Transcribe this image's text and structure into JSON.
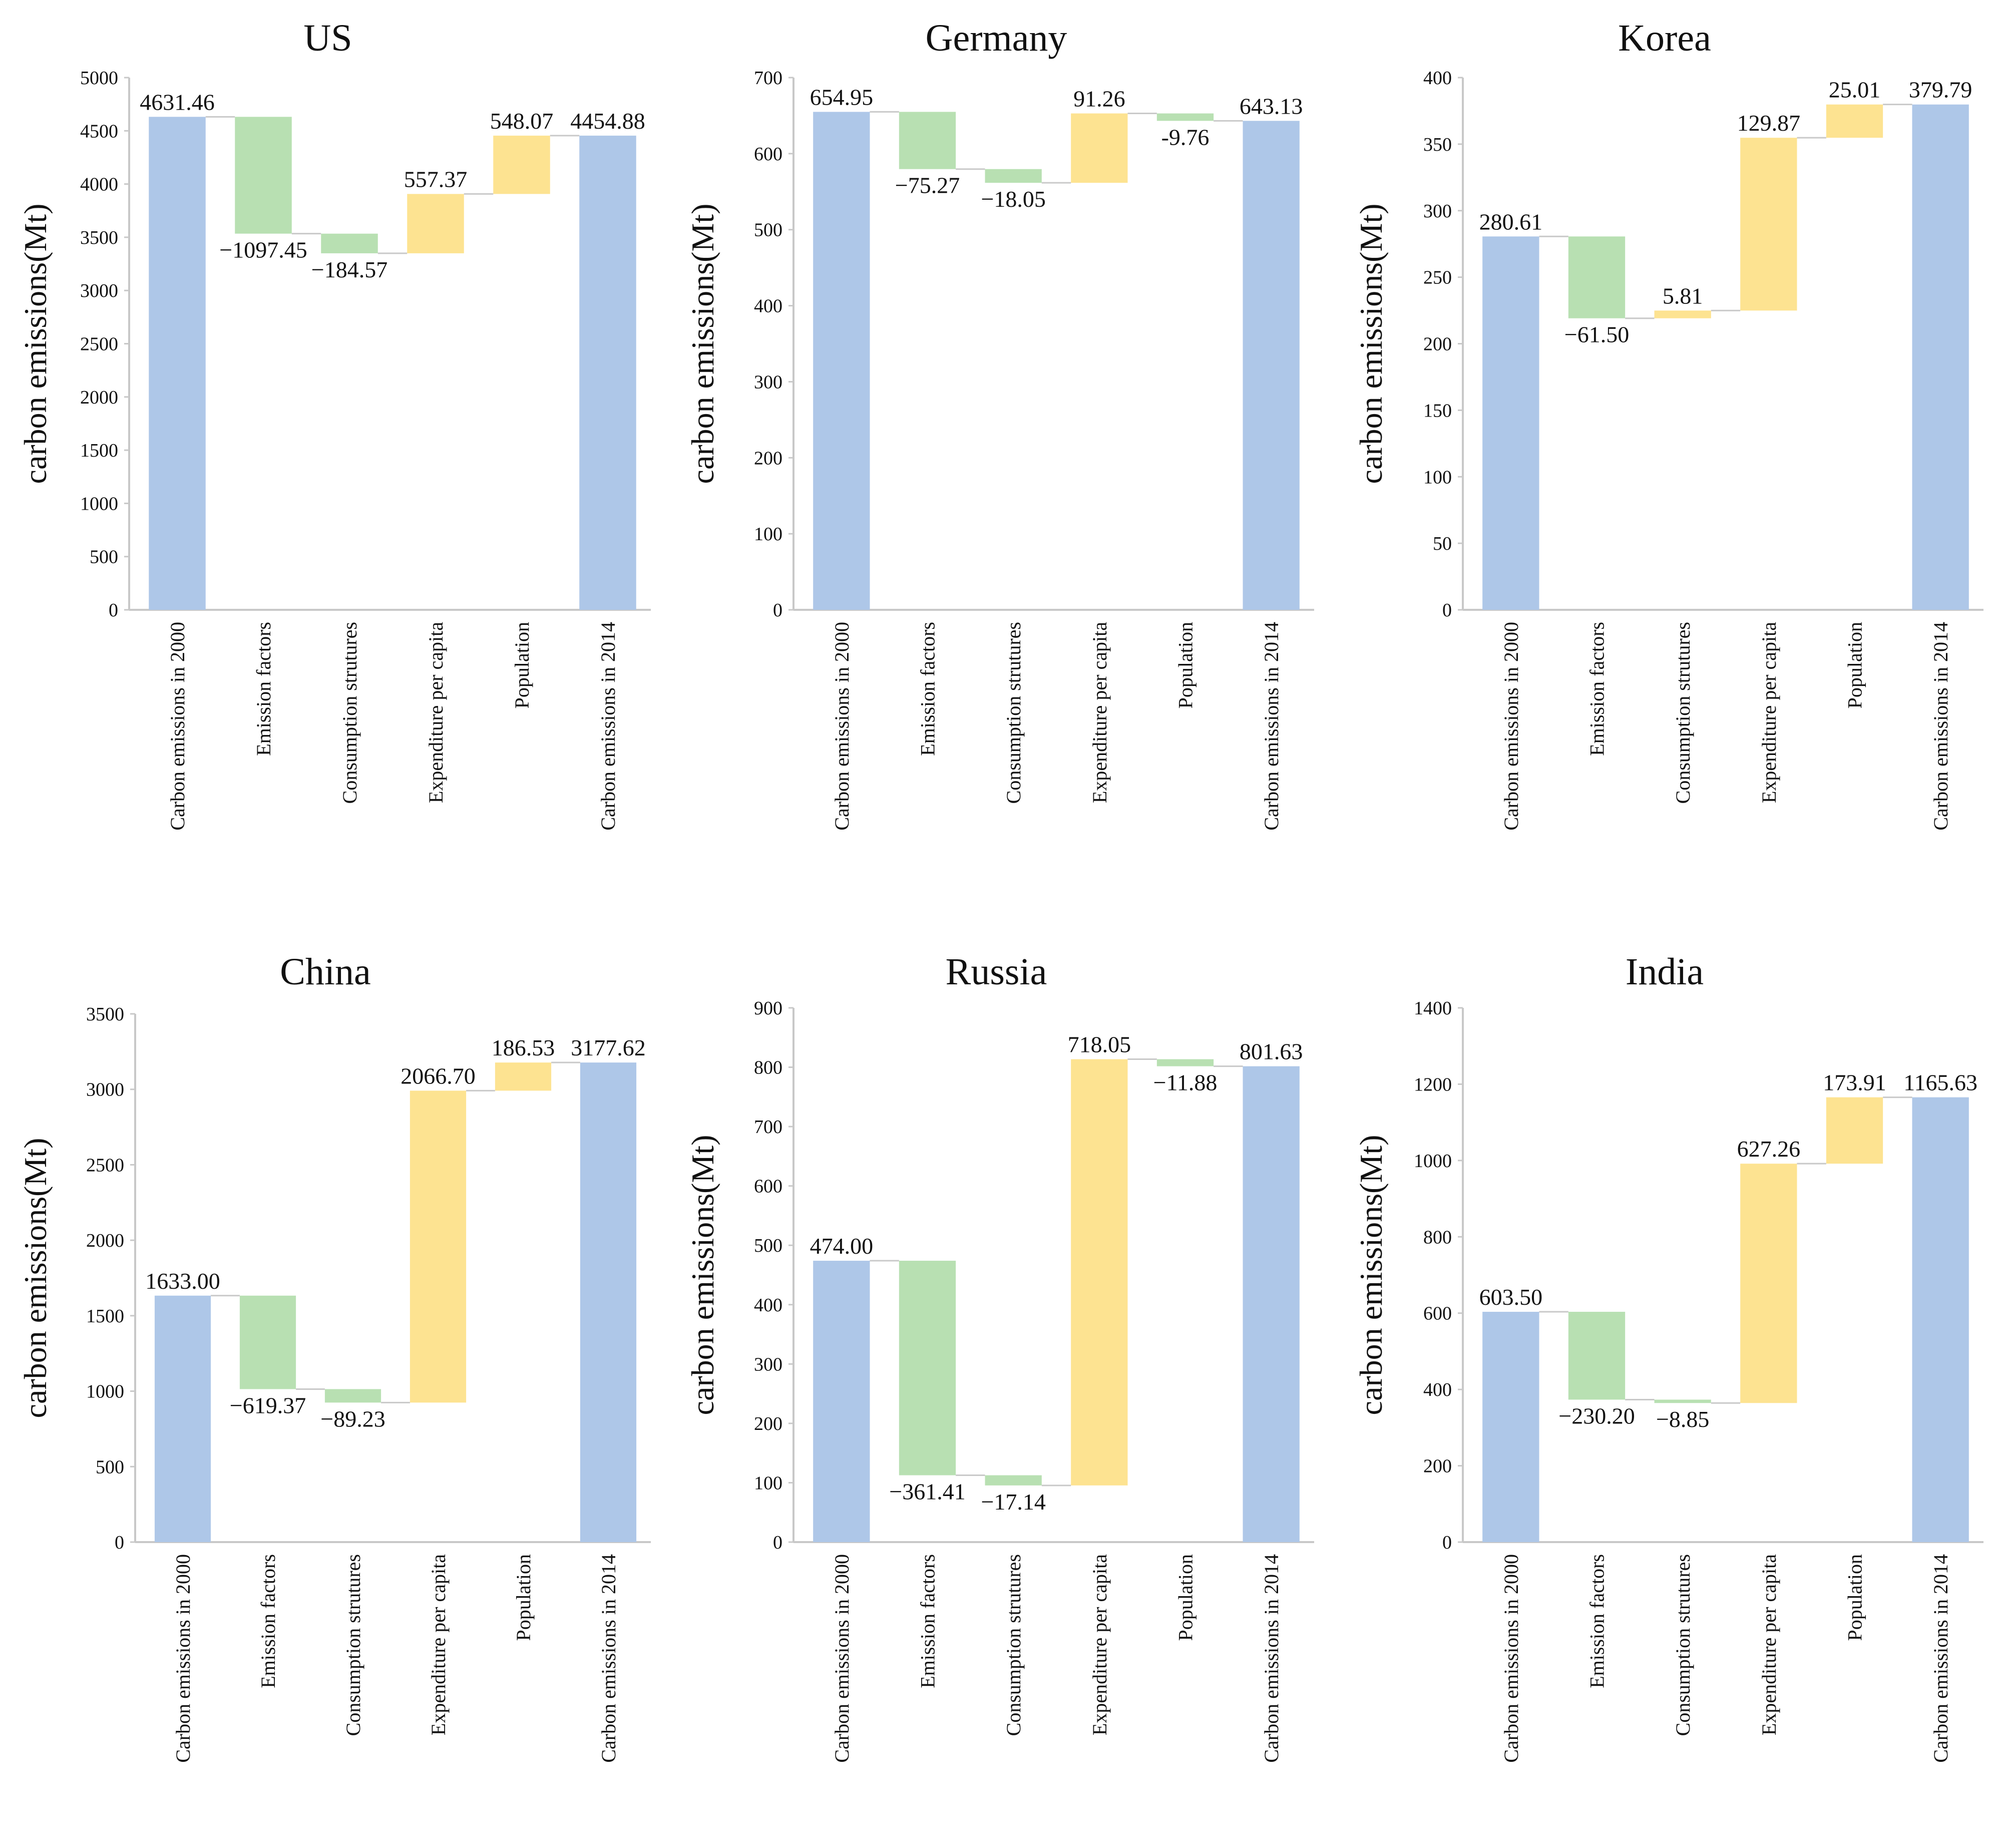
{
  "colors": {
    "total": "#aec7e8",
    "decrease": "#b8e0b2",
    "increase": "#fde391"
  },
  "chart_data": [
    {
      "type": "waterfall",
      "title": "US",
      "ylabel": "carbon emissions(Mt)",
      "ylim": [
        0,
        5000
      ],
      "yticks": [
        0,
        500,
        1000,
        1500,
        2000,
        2500,
        3000,
        3500,
        4000,
        4500,
        5000
      ],
      "categories": [
        "Carbon emissions in 2000",
        "Emission factors",
        "Consumption strutures",
        "Expenditure per capita",
        "Population",
        "Carbon emissions in 2014"
      ],
      "values": [
        4631.46,
        -1097.45,
        -184.57,
        557.37,
        548.07,
        4454.88
      ],
      "labels": [
        "4631.46",
        "−1097.45",
        "−184.57",
        "557.37",
        "548.07",
        "4454.88"
      ]
    },
    {
      "type": "waterfall",
      "title": "Germany",
      "ylabel": "carbon emissions(Mt)",
      "ylim": [
        0,
        700
      ],
      "yticks": [
        0,
        100,
        200,
        300,
        400,
        500,
        600,
        700
      ],
      "categories": [
        "Carbon emissions in 2000",
        "Emission factors",
        "Consumption strutures",
        "Expenditure per capita",
        "Population",
        "Carbon emissions in 2014"
      ],
      "values": [
        654.95,
        -75.27,
        -18.05,
        91.26,
        -9.76,
        643.13
      ],
      "labels": [
        "654.95",
        "−75.27",
        "−18.05",
        "91.26",
        "-9.76",
        "643.13"
      ]
    },
    {
      "type": "waterfall",
      "title": "Korea",
      "ylabel": "carbon emissions(Mt)",
      "ylim": [
        0,
        400
      ],
      "yticks": [
        0,
        50,
        100,
        150,
        200,
        250,
        300,
        350,
        400
      ],
      "categories": [
        "Carbon emissions in 2000",
        "Emission factors",
        "Consumption strutures",
        "Expenditure per capita",
        "Population",
        "Carbon emissions in 2014"
      ],
      "values": [
        280.61,
        -61.5,
        5.81,
        129.87,
        25.01,
        379.79
      ],
      "labels": [
        "280.61",
        "−61.50",
        "5.81",
        "129.87",
        "25.01",
        "379.79"
      ]
    },
    {
      "type": "waterfall",
      "title": "China",
      "ylabel": "carbon emissions(Mt)",
      "ylim": [
        0,
        3500
      ],
      "yticks": [
        0,
        500,
        1000,
        1500,
        2000,
        2500,
        3000,
        3500
      ],
      "categories": [
        "Carbon emissions in 2000",
        "Emission factors",
        "Consumption strutures",
        "Expenditure per capita",
        "Population",
        "Carbon emissions in 2014"
      ],
      "values": [
        1633.0,
        -619.37,
        -89.23,
        2066.7,
        186.53,
        3177.62
      ],
      "labels": [
        "1633.00",
        "−619.37",
        "−89.23",
        "2066.70",
        "186.53",
        "3177.62"
      ]
    },
    {
      "type": "waterfall",
      "title": "Russia",
      "ylabel": "carbon emissions(Mt)",
      "ylim": [
        0,
        900
      ],
      "yticks": [
        0,
        100,
        200,
        300,
        400,
        500,
        600,
        700,
        800,
        900
      ],
      "categories": [
        "Carbon emissions in 2000",
        "Emission factors",
        "Consumption strutures",
        "Expenditure per capita",
        "Population",
        "Carbon emissions in 2014"
      ],
      "values": [
        474.0,
        -361.41,
        -17.14,
        718.05,
        -11.88,
        801.63
      ],
      "labels": [
        "474.00",
        "−361.41",
        "−17.14",
        "718.05",
        "−11.88",
        "801.63"
      ]
    },
    {
      "type": "waterfall",
      "title": "India",
      "ylabel": "carbon emissions(Mt)",
      "ylim": [
        0,
        1400
      ],
      "yticks": [
        0,
        200,
        400,
        600,
        800,
        1000,
        1200,
        1400
      ],
      "categories": [
        "Carbon emissions in 2000",
        "Emission factors",
        "Consumption strutures",
        "Expenditure per capita",
        "Population",
        "Carbon emissions in 2014"
      ],
      "values": [
        603.5,
        -230.2,
        -8.85,
        627.26,
        173.91,
        1165.63
      ],
      "labels": [
        "603.50",
        "−230.20",
        "−8.85",
        "627.26",
        "173.91",
        "1165.63"
      ]
    }
  ]
}
